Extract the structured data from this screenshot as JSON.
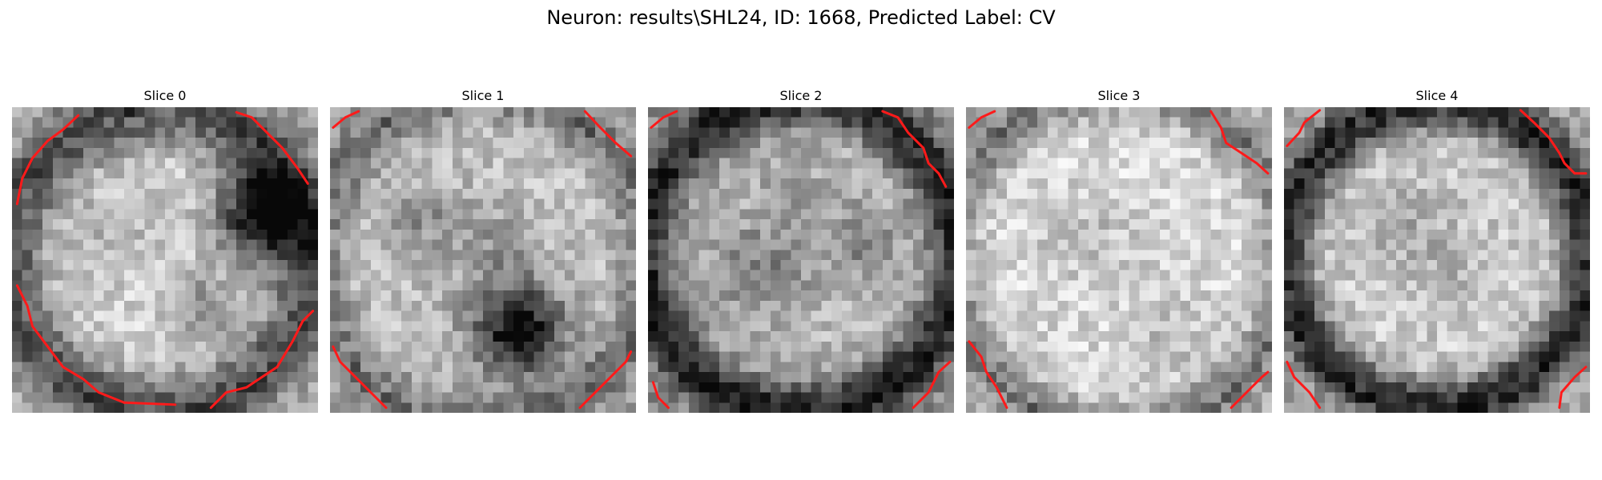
{
  "figure": {
    "title": "Neuron: results\\SHL24, ID: 1668, Predicted Label: CV"
  },
  "colors": {
    "contour": "#ff1a1a",
    "background": "#ffffff",
    "colormap": "grayscale"
  },
  "panels": [
    {
      "title": "Slice 0"
    },
    {
      "title": "Slice 1"
    },
    {
      "title": "Slice 2"
    },
    {
      "title": "Slice 3"
    },
    {
      "title": "Slice 4"
    }
  ]
}
